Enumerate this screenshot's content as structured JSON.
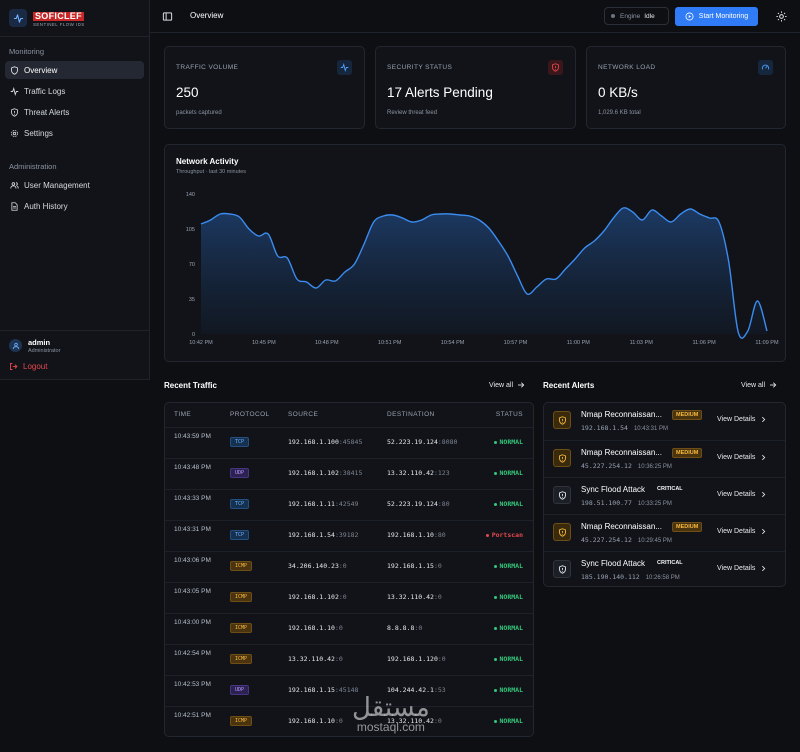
{
  "brand": {
    "name": "SOFICLEF",
    "subtitle": "SENTINEL FLOW IDS"
  },
  "sidebar": {
    "sections": [
      {
        "title": "Monitoring",
        "items": [
          {
            "label": "Overview",
            "icon": "shield-icon",
            "active": true
          },
          {
            "label": "Traffic Logs",
            "icon": "activity-icon"
          },
          {
            "label": "Threat Alerts",
            "icon": "shield-alert-icon"
          },
          {
            "label": "Settings",
            "icon": "gear-icon"
          }
        ]
      },
      {
        "title": "Administration",
        "items": [
          {
            "label": "User Management",
            "icon": "users-icon"
          },
          {
            "label": "Auth History",
            "icon": "file-icon"
          }
        ]
      }
    ],
    "user": {
      "name": "admin",
      "role": "Administrator"
    },
    "logout_label": "Logout"
  },
  "header": {
    "title": "Overview",
    "engine_label": "Engine",
    "engine_state": "Idle",
    "start_label": "Start Monitoring"
  },
  "stats": [
    {
      "label": "TRAFFIC VOLUME",
      "value": "250",
      "sub": "packets captured",
      "icon": "activity-icon",
      "color": "#4ea1ff"
    },
    {
      "label": "SECURITY STATUS",
      "value": "17 Alerts Pending",
      "sub": "Review threat feed",
      "icon": "shield-alert-icon",
      "color": "#e5484d"
    },
    {
      "label": "NETWORK LOAD",
      "value": "0 KB/s",
      "sub": "1,029.6 KB total",
      "icon": "gauge-icon",
      "color": "#4ea1ff"
    }
  ],
  "chart_data": {
    "type": "area",
    "title": "Network Activity",
    "subtitle": "Throughput · last 30 minutes",
    "x_ticks": [
      "10:42 PM",
      "10:45 PM",
      "10:48 PM",
      "10:51 PM",
      "10:54 PM",
      "10:57 PM",
      "11:00 PM",
      "11:03 PM",
      "11:06 PM",
      "11:09 PM"
    ],
    "y_ticks": [
      0,
      35,
      70,
      105,
      140
    ],
    "ylim": [
      0,
      140
    ],
    "grid": false,
    "color": "#3b8cf0",
    "values": [
      110,
      114,
      120,
      120,
      117,
      105,
      98,
      100,
      78,
      76,
      55,
      52,
      46,
      54,
      53,
      62,
      70,
      90,
      112,
      118,
      119,
      116,
      112,
      114,
      119,
      120,
      120,
      119,
      118,
      114,
      106,
      93,
      78,
      58,
      40,
      47,
      55,
      55,
      65,
      75,
      86,
      93,
      103,
      116,
      126,
      122,
      114,
      124,
      118,
      112,
      120,
      125,
      120,
      116,
      112,
      73,
      2,
      3,
      33,
      3
    ]
  },
  "recent_traffic": {
    "title": "Recent Traffic",
    "view_all": "View all",
    "columns": [
      "TIME",
      "PROTOCOL",
      "SOURCE",
      "DESTINATION",
      "STATUS"
    ],
    "rows": [
      {
        "time": "10:43:59 PM",
        "protocol": "TCP",
        "src_ip": "192.168.1.100",
        "src_port": ":45845",
        "dst_ip": "52.223.19.124",
        "dst_port": ":8080",
        "status": "NORMAL"
      },
      {
        "time": "10:43:48 PM",
        "protocol": "UDP",
        "src_ip": "192.168.1.102",
        "src_port": ":38415",
        "dst_ip": "13.32.110.42",
        "dst_port": ":123",
        "status": "NORMAL"
      },
      {
        "time": "10:43:33 PM",
        "protocol": "TCP",
        "src_ip": "192.168.1.11",
        "src_port": ":42549",
        "dst_ip": "52.223.19.124",
        "dst_port": ":80",
        "status": "NORMAL"
      },
      {
        "time": "10:43:31 PM",
        "protocol": "TCP",
        "src_ip": "192.168.1.54",
        "src_port": ":39182",
        "dst_ip": "192.168.1.10",
        "dst_port": ":80",
        "status": "Portscan"
      },
      {
        "time": "10:43:06 PM",
        "protocol": "ICMP",
        "src_ip": "34.206.140.23",
        "src_port": ":0",
        "dst_ip": "192.168.1.15",
        "dst_port": ":0",
        "status": "NORMAL"
      },
      {
        "time": "10:43:05 PM",
        "protocol": "ICMP",
        "src_ip": "192.168.1.102",
        "src_port": ":0",
        "dst_ip": "13.32.110.42",
        "dst_port": ":0",
        "status": "NORMAL"
      },
      {
        "time": "10:43:00 PM",
        "protocol": "ICMP",
        "src_ip": "192.168.1.10",
        "src_port": ":0",
        "dst_ip": "8.8.8.8",
        "dst_port": ":0",
        "status": "NORMAL"
      },
      {
        "time": "10:42:54 PM",
        "protocol": "ICMP",
        "src_ip": "13.32.110.42",
        "src_port": ":0",
        "dst_ip": "192.168.1.120",
        "dst_port": ":0",
        "status": "NORMAL"
      },
      {
        "time": "10:42:53 PM",
        "protocol": "UDP",
        "src_ip": "192.168.1.15",
        "src_port": ":45148",
        "dst_ip": "104.244.42.1",
        "dst_port": ":53",
        "status": "NORMAL"
      },
      {
        "time": "10:42:51 PM",
        "protocol": "ICMP",
        "src_ip": "192.168.1.10",
        "src_port": ":0",
        "dst_ip": "13.32.110.42",
        "dst_port": ":0",
        "status": "NORMAL"
      }
    ]
  },
  "recent_alerts": {
    "title": "Recent Alerts",
    "view_all": "View all",
    "rows": [
      {
        "title": "Nmap Reconnaissan...",
        "severity": "MEDIUM",
        "ip": "192.168.1.54",
        "time": "10:43:31 PM",
        "action": "View Details"
      },
      {
        "title": "Nmap Reconnaissan...",
        "severity": "MEDIUM",
        "ip": "45.227.254.12",
        "time": "10:36:25 PM",
        "action": "View Details"
      },
      {
        "title": "Sync Flood Attack",
        "severity": "CRITICAL",
        "ip": "198.51.100.77",
        "time": "10:33:25 PM",
        "action": "View Details"
      },
      {
        "title": "Nmap Reconnaissan...",
        "severity": "MEDIUM",
        "ip": "45.227.254.12",
        "time": "10:29:45 PM",
        "action": "View Details"
      },
      {
        "title": "Sync Flood Attack",
        "severity": "CRITICAL",
        "ip": "185.190.140.112",
        "time": "10:26:58 PM",
        "action": "View Details"
      }
    ]
  },
  "watermark": {
    "arabic": "مستقل",
    "latin": "mostaql.com"
  }
}
